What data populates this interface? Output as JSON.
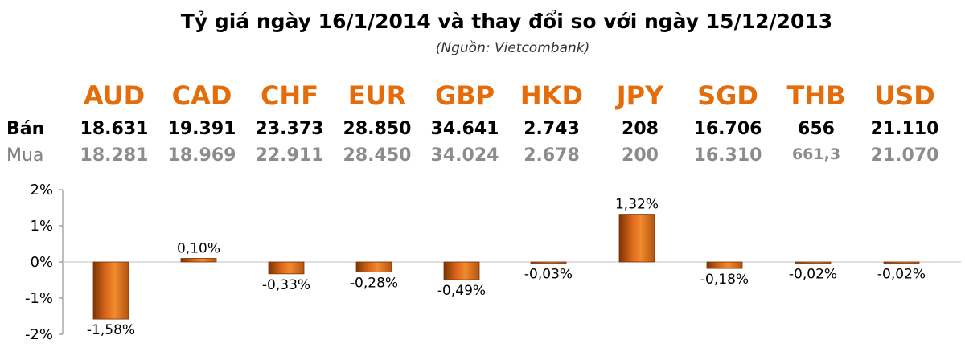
{
  "title": "Tỷ giá ngày 16/1/2014 và thay đổi so với ngày 15/12/2013",
  "subtitle": "(Nguồn: Vietcombank)",
  "rows": {
    "sell_label": "Bán",
    "buy_label": "Mua"
  },
  "currencies": [
    {
      "code": "AUD",
      "sell": "18.631",
      "buy": "18.281"
    },
    {
      "code": "CAD",
      "sell": "19.391",
      "buy": "18.969"
    },
    {
      "code": "CHF",
      "sell": "23.373",
      "buy": "22.911"
    },
    {
      "code": "EUR",
      "sell": "28.850",
      "buy": "28.450"
    },
    {
      "code": "GBP",
      "sell": "34.641",
      "buy": "34.024"
    },
    {
      "code": "HKD",
      "sell": "2.743",
      "buy": "2.678"
    },
    {
      "code": "JPY",
      "sell": "208",
      "buy": "200"
    },
    {
      "code": "SGD",
      "sell": "16.706",
      "buy": "16.310"
    },
    {
      "code": "THB",
      "sell": "656",
      "buy": "661,3"
    },
    {
      "code": "USD",
      "sell": "21.110",
      "buy": "21.070"
    }
  ],
  "colors": {
    "accent": "#e46c0a",
    "bar_dark": "#7a3405",
    "bar_light": "#f28a2e",
    "axis": "#7f7f7f"
  },
  "chart_data": {
    "type": "bar",
    "categories": [
      "AUD",
      "CAD",
      "CHF",
      "EUR",
      "GBP",
      "HKD",
      "JPY",
      "SGD",
      "THB",
      "USD"
    ],
    "values": [
      -1.58,
      0.1,
      -0.33,
      -0.28,
      -0.49,
      -0.03,
      1.32,
      -0.18,
      -0.02,
      -0.02
    ],
    "data_labels": [
      "-1,58%",
      "0,10%",
      "-0,33%",
      "-0,28%",
      "-0,49%",
      "-0,03%",
      "1,32%",
      "-0,18%",
      "-0,02%",
      "-0,02%"
    ],
    "yticks": [
      2,
      1,
      0,
      -1,
      -2
    ],
    "ytick_labels": [
      "2%",
      "1%",
      "0%",
      "-1%",
      "-2%"
    ],
    "ylim": [
      -2,
      2
    ],
    "title": "",
    "xlabel": "",
    "ylabel": ""
  }
}
